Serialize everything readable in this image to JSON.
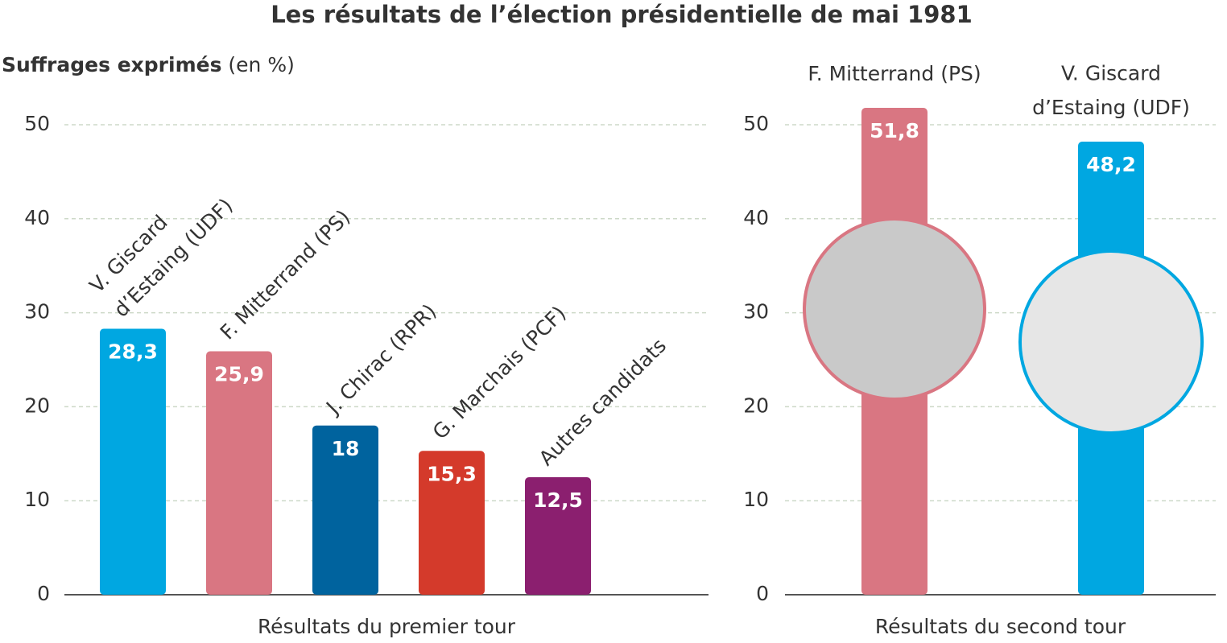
{
  "title": "Les résultats de l’élection présidentielle de mai 1981",
  "chart_data": [
    {
      "type": "bar",
      "ylabel": "Suffrages exprimés",
      "ylabel_unit": "(en %)",
      "xlabel": "Résultats du premier tour",
      "categories": [
        "V. Giscard\nd’Estaing (UDF)",
        "F. Mitterrand (PS)",
        "J. Chirac (RPR)",
        "G. Marchais (PCF)",
        "Autres candidats"
      ],
      "values": [
        28.3,
        25.9,
        18,
        15.3,
        12.5
      ],
      "value_labels": [
        "28,3",
        "25,9",
        "18",
        "15,3",
        "12,5"
      ],
      "colors": [
        "#00a7e1",
        "#d97682",
        "#00639e",
        "#d43a2b",
        "#8b1f6f"
      ],
      "ylim": [
        0,
        50
      ],
      "yticks": [
        0,
        10,
        20,
        30,
        40,
        50
      ],
      "grid": true
    },
    {
      "type": "bar",
      "xlabel": "Résultats du second tour",
      "categories": [
        "F. Mitterrand (PS)",
        "V. Giscard\nd’Estaing (UDF)"
      ],
      "values": [
        51.8,
        48.2
      ],
      "value_labels": [
        "51,8",
        "48,2"
      ],
      "colors": [
        "#d97682",
        "#00a7e1"
      ],
      "ylim": [
        0,
        50
      ],
      "yticks": [
        0,
        10,
        20,
        30,
        40,
        50
      ],
      "grid": true
    }
  ]
}
